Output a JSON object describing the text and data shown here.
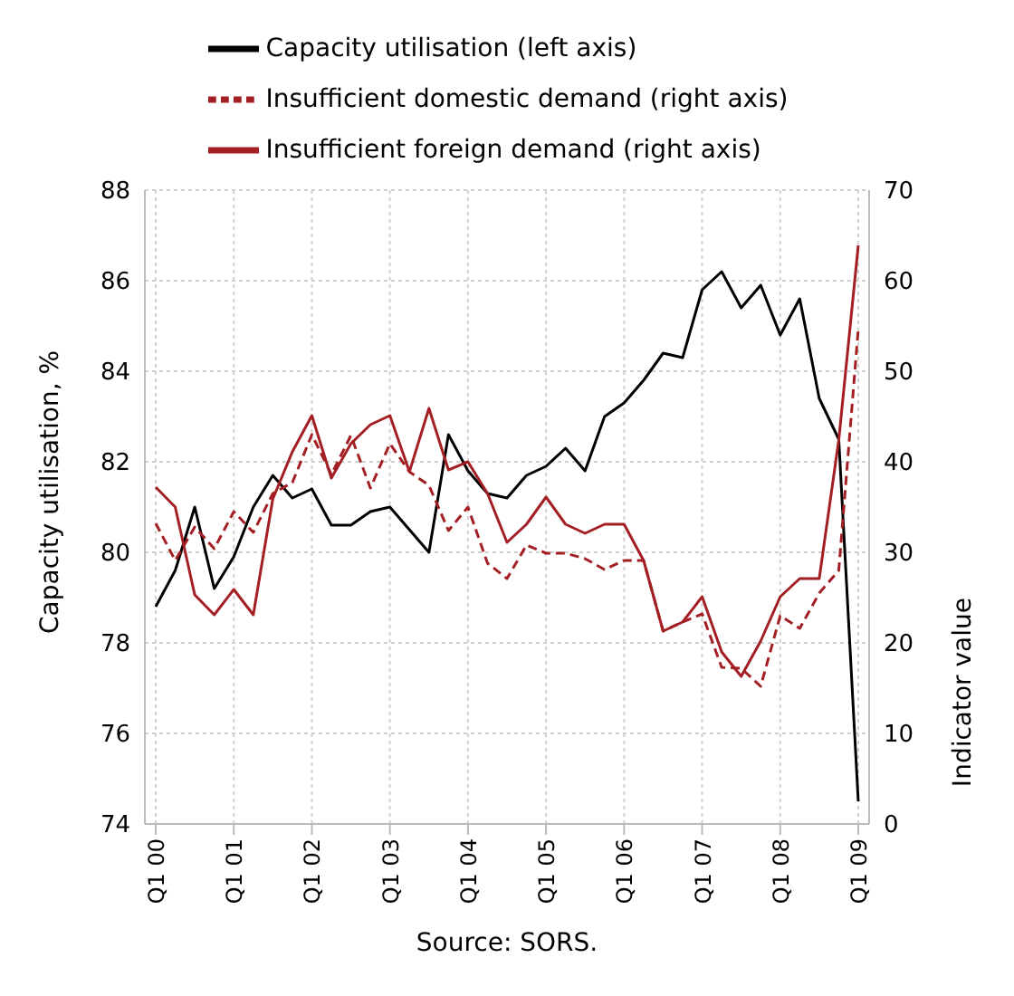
{
  "chart_data": {
    "type": "line",
    "categories": [
      "Q1 00",
      null,
      null,
      null,
      "Q1 01",
      null,
      null,
      null,
      "Q1 02",
      null,
      null,
      null,
      "Q1 03",
      null,
      null,
      null,
      "Q1 04",
      null,
      null,
      null,
      "Q1 05",
      null,
      null,
      null,
      "Q1 06",
      null,
      null,
      null,
      "Q1 07",
      null,
      null,
      null,
      "Q1 08",
      null,
      null,
      null,
      "Q1 09"
    ],
    "series": [
      {
        "name": "Capacity utilisation (left axis)",
        "color": "#000000",
        "line_style": "solid",
        "values": [
          78.8,
          79.6,
          81.0,
          79.2,
          79.9,
          81.0,
          81.7,
          81.2,
          81.4,
          80.6,
          80.6,
          80.9,
          81.0,
          80.5,
          80.0,
          82.6,
          81.8,
          81.3,
          81.2,
          81.7,
          81.9,
          82.3,
          81.8,
          83.0,
          83.3,
          83.8,
          84.4,
          84.3,
          85.8,
          86.2,
          85.4,
          85.9,
          84.8,
          85.6,
          83.4,
          82.5,
          74.5
        ]
      },
      {
        "name": "Insufficient domestic demand (right axis)",
        "color": "#a31f24",
        "axis": "y2",
        "line_style": "dashed",
        "values": [
          33.2,
          29.1,
          32.8,
          30.4,
          34.5,
          32.2,
          36.5,
          37.7,
          43.0,
          38.6,
          42.9,
          37.1,
          42.0,
          38.9,
          37.4,
          32.4,
          35.0,
          28.8,
          27.1,
          30.8,
          29.9,
          29.9,
          29.3,
          28.1,
          29.1,
          29.1,
          21.3,
          22.3,
          23.2,
          17.3,
          17.2,
          15.2,
          23.0,
          21.6,
          25.5,
          28.0,
          54.7
        ]
      },
      {
        "name": "Insufficient foreign demand (right axis)",
        "color": "#a31f24",
        "axis": "y2",
        "line_style": "solid",
        "values": [
          37.2,
          35.0,
          25.3,
          23.1,
          25.9,
          23.1,
          35.9,
          41.1,
          45.1,
          38.2,
          42.0,
          44.1,
          45.1,
          38.9,
          45.9,
          39.1,
          40.0,
          36.5,
          31.1,
          33.1,
          36.1,
          33.1,
          32.1,
          33.1,
          33.1,
          29.1,
          21.3,
          22.3,
          25.1,
          19.0,
          16.3,
          20.2,
          25.1,
          27.1,
          27.1,
          42.4,
          63.9
        ]
      }
    ],
    "ylabel": "Capacity utilisation, %",
    "y2label": "Indicator value",
    "ylim": [
      74,
      88
    ],
    "yticks": [
      74,
      76,
      78,
      80,
      82,
      84,
      86,
      88
    ],
    "y2lim": [
      0,
      70
    ],
    "y2ticks": [
      0,
      10,
      20,
      30,
      40,
      50,
      60,
      70
    ],
    "grid": true,
    "legend": "top",
    "marker": "none",
    "annotations": [
      "Source: SORS."
    ]
  }
}
